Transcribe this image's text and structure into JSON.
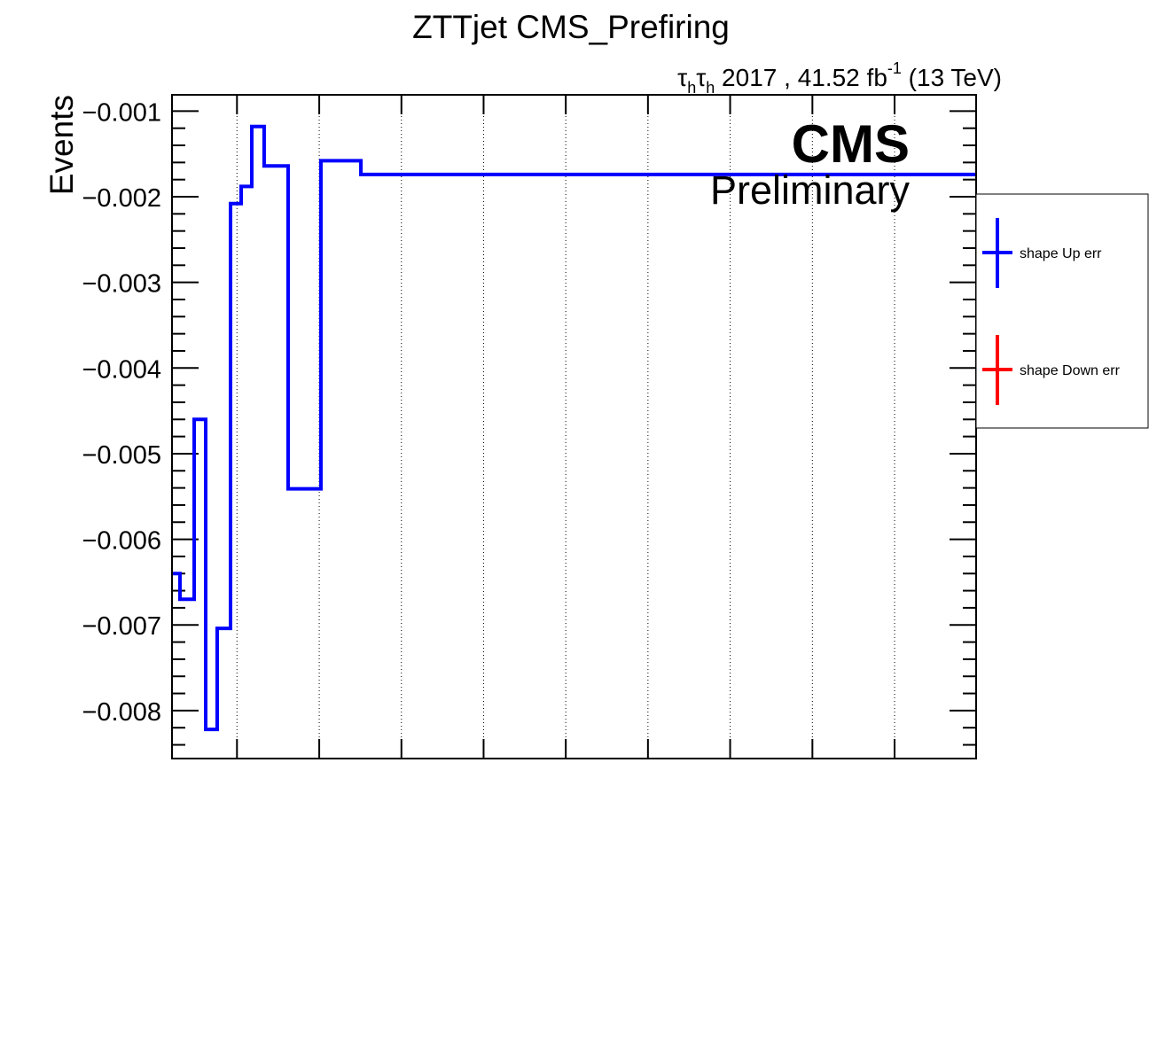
{
  "chart_data": {
    "type": "line",
    "title": "ZTTjet CMS_Prefiring",
    "lumi_label": {
      "tau": "τ",
      "sub": "h",
      "rest": " 2017 , 41.52 fb",
      "sup": "-1",
      "energy": " (13 TeV)"
    },
    "cms_label": "CMS",
    "cms_sublabel": "Preliminary",
    "ylabel": "Events",
    "xlabel": "",
    "ylim": [
      -0.00856,
      -0.00081
    ],
    "yticks": [
      -0.001,
      -0.002,
      -0.003,
      -0.004,
      -0.005,
      -0.006,
      -0.007,
      -0.008
    ],
    "ytick_labels": [
      "−0.001",
      "−0.002",
      "−0.003",
      "−0.004",
      "−0.005",
      "−0.006",
      "−0.007",
      "−0.008"
    ],
    "xlim": [
      0,
      1
    ],
    "xgrid": [
      0.0808,
      0.1831,
      0.2853,
      0.3875,
      0.4897,
      0.5919,
      0.6941,
      0.7964,
      0.8986
    ],
    "grid": "vertical dotted",
    "series": [
      {
        "name": "shape Up err",
        "color": "#0000ff",
        "bin_edges": [
          0,
          0.0099,
          0.0276,
          0.0419,
          0.0562,
          0.0728,
          0.086,
          0.0992,
          0.1146,
          0.1444,
          0.1852,
          0.2349,
          1.0
        ],
        "values": [
          -0.0064,
          -0.0067,
          -0.0046,
          -0.00822,
          -0.00704,
          -0.00208,
          -0.00188,
          -0.00118,
          -0.00164,
          -0.00541,
          -0.00158,
          -0.00174
        ]
      },
      {
        "name": "shape Down err",
        "color": "#ff0000",
        "bin_edges": [],
        "values": []
      }
    ],
    "legend": {
      "position": "right",
      "entries": [
        {
          "label": "shape Up err",
          "color": "#0000ff"
        },
        {
          "label": "shape Down err",
          "color": "#ff0000"
        }
      ]
    }
  }
}
